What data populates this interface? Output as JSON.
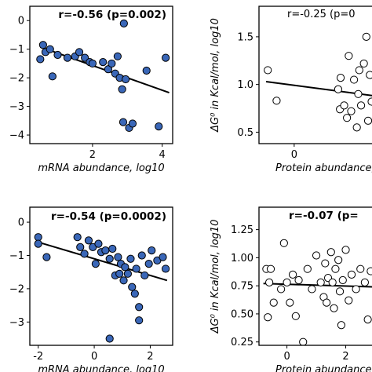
{
  "chart_data": [
    {
      "type": "scatter",
      "annotation": "r=-0.56 (p=0.002)",
      "annotation_bold": true,
      "xlabel": "mRNA abundance,  log10",
      "ylabel": "",
      "xlim": [
        0.2,
        4.3
      ],
      "ylim": [
        -4.3,
        0.5
      ],
      "xticks": [
        2,
        4
      ],
      "yticks": [
        0,
        -1,
        -2,
        -3,
        -4
      ],
      "marker_fill": "#3a67b8",
      "marker_edge": "#000000",
      "trend": {
        "x": [
          0.5,
          4.2
        ],
        "y": [
          -0.92,
          -2.52
        ]
      },
      "points": [
        {
          "x": 0.5,
          "y": -1.35
        },
        {
          "x": 0.58,
          "y": -0.85
        },
        {
          "x": 0.65,
          "y": -1.1
        },
        {
          "x": 0.78,
          "y": -1.0
        },
        {
          "x": 0.85,
          "y": -1.95
        },
        {
          "x": 1.0,
          "y": -1.2
        },
        {
          "x": 1.28,
          "y": -1.3
        },
        {
          "x": 1.5,
          "y": -1.25
        },
        {
          "x": 1.62,
          "y": -1.1
        },
        {
          "x": 1.78,
          "y": -1.3
        },
        {
          "x": 1.92,
          "y": -1.45
        },
        {
          "x": 2.0,
          "y": -1.5
        },
        {
          "x": 2.3,
          "y": -1.45
        },
        {
          "x": 2.45,
          "y": -1.7
        },
        {
          "x": 2.55,
          "y": -1.5
        },
        {
          "x": 2.65,
          "y": -1.85
        },
        {
          "x": 2.72,
          "y": -1.25
        },
        {
          "x": 2.78,
          "y": -2.0
        },
        {
          "x": 2.85,
          "y": -2.4
        },
        {
          "x": 2.88,
          "y": -3.55
        },
        {
          "x": 2.9,
          "y": -0.1
        },
        {
          "x": 2.95,
          "y": -2.05
        },
        {
          "x": 3.05,
          "y": -3.75
        },
        {
          "x": 3.15,
          "y": -3.6
        },
        {
          "x": 3.55,
          "y": -1.75
        },
        {
          "x": 3.9,
          "y": -3.7
        },
        {
          "x": 4.1,
          "y": -1.3
        }
      ]
    },
    {
      "type": "scatter",
      "annotation": "r=-0.25 (p=0",
      "annotation_bold": false,
      "xlabel": "Protein abundance,  M",
      "ylabel": "ΔG⁰ in Kcal/mol, log10",
      "xlim": [
        -1.0,
        2.3
      ],
      "ylim": [
        0.38,
        1.82
      ],
      "xticks": [
        0
      ],
      "yticks": [
        0.5,
        1.0,
        1.5
      ],
      "marker_fill": "#ffffff",
      "marker_edge": "#000000",
      "trend": {
        "x": [
          -0.8,
          2.3
        ],
        "y": [
          1.03,
          0.88
        ]
      },
      "points": [
        {
          "x": -0.75,
          "y": 1.15
        },
        {
          "x": -0.5,
          "y": 0.83
        },
        {
          "x": 0.8,
          "y": 0.25
        },
        {
          "x": 1.25,
          "y": 0.95
        },
        {
          "x": 1.3,
          "y": 0.74
        },
        {
          "x": 1.32,
          "y": 1.07
        },
        {
          "x": 1.42,
          "y": 0.78
        },
        {
          "x": 1.5,
          "y": 0.65
        },
        {
          "x": 1.55,
          "y": 1.3
        },
        {
          "x": 1.62,
          "y": 0.72
        },
        {
          "x": 1.7,
          "y": 1.05
        },
        {
          "x": 1.78,
          "y": 0.55
        },
        {
          "x": 1.82,
          "y": 0.9
        },
        {
          "x": 1.85,
          "y": 1.15
        },
        {
          "x": 1.9,
          "y": 0.78
        },
        {
          "x": 1.98,
          "y": 1.22
        },
        {
          "x": 2.05,
          "y": 1.5
        },
        {
          "x": 2.1,
          "y": 0.62
        },
        {
          "x": 2.15,
          "y": 1.1
        },
        {
          "x": 2.2,
          "y": 0.82
        }
      ]
    },
    {
      "type": "scatter",
      "annotation": "r=-0.54 (p=0.0002)",
      "annotation_bold": true,
      "xlabel": "mRNA abundance,  log10",
      "ylabel": "",
      "xlim": [
        -2.3,
        2.8
      ],
      "ylim": [
        -3.7,
        0.45
      ],
      "xticks": [
        -2,
        0,
        2
      ],
      "yticks": [
        0,
        -1,
        -2,
        -3
      ],
      "marker_fill": "#3a67b8",
      "marker_edge": "#000000",
      "trend": {
        "x": [
          -2.0,
          2.6
        ],
        "y": [
          -0.6,
          -1.75
        ]
      },
      "points": [
        {
          "x": -2.0,
          "y": -0.45
        },
        {
          "x": -2.0,
          "y": -0.65
        },
        {
          "x": -1.7,
          "y": -1.05
        },
        {
          "x": -0.6,
          "y": -0.45
        },
        {
          "x": -0.5,
          "y": -0.75
        },
        {
          "x": -0.35,
          "y": -0.95
        },
        {
          "x": -0.2,
          "y": -0.55
        },
        {
          "x": -0.05,
          "y": -0.75
        },
        {
          "x": 0.05,
          "y": -1.25
        },
        {
          "x": 0.15,
          "y": -0.65
        },
        {
          "x": 0.25,
          "y": -0.9
        },
        {
          "x": 0.4,
          "y": -0.85
        },
        {
          "x": 0.55,
          "y": -1.1
        },
        {
          "x": 0.65,
          "y": -0.8
        },
        {
          "x": 0.75,
          "y": -1.6
        },
        {
          "x": 0.85,
          "y": -1.05
        },
        {
          "x": 0.95,
          "y": -1.25
        },
        {
          "x": 1.05,
          "y": -1.75
        },
        {
          "x": 1.1,
          "y": -1.35
        },
        {
          "x": 1.2,
          "y": -1.55
        },
        {
          "x": 1.3,
          "y": -1.1
        },
        {
          "x": 1.35,
          "y": -1.95
        },
        {
          "x": 1.45,
          "y": -2.15
        },
        {
          "x": 1.5,
          "y": -1.4
        },
        {
          "x": 1.6,
          "y": -2.55
        },
        {
          "x": 1.7,
          "y": -1.0
        },
        {
          "x": 1.8,
          "y": -1.6
        },
        {
          "x": 1.95,
          "y": -1.25
        },
        {
          "x": 2.05,
          "y": -0.85
        },
        {
          "x": 2.25,
          "y": -1.15
        },
        {
          "x": 2.45,
          "y": -1.05
        },
        {
          "x": 2.55,
          "y": -1.4
        },
        {
          "x": 0.55,
          "y": -3.5
        },
        {
          "x": 1.6,
          "y": -2.95
        },
        {
          "x": 0.9,
          "y": -1.55
        }
      ]
    },
    {
      "type": "scatter",
      "annotation": "r=-0.07 (p=",
      "annotation_bold": true,
      "xlabel": "Protein abundance,  M",
      "ylabel": "ΔG⁰ in Kcal/mol, log10",
      "xlim": [
        -0.95,
        3.0
      ],
      "ylim": [
        0.22,
        1.45
      ],
      "xticks": [
        0,
        2
      ],
      "yticks": [
        0.25,
        0.5,
        0.75,
        1.0,
        1.25
      ],
      "marker_fill": "#ffffff",
      "marker_edge": "#000000",
      "trend": {
        "x": [
          -0.8,
          3.0
        ],
        "y": [
          0.77,
          0.74
        ]
      },
      "points": [
        {
          "x": -0.7,
          "y": 0.9
        },
        {
          "x": -0.6,
          "y": 0.78
        },
        {
          "x": -0.55,
          "y": 0.9
        },
        {
          "x": -0.45,
          "y": 0.6
        },
        {
          "x": -0.65,
          "y": 0.47
        },
        {
          "x": -0.2,
          "y": 0.72
        },
        {
          "x": -0.1,
          "y": 1.13
        },
        {
          "x": 0.0,
          "y": 0.78
        },
        {
          "x": 0.1,
          "y": 0.6
        },
        {
          "x": 0.2,
          "y": 0.85
        },
        {
          "x": 0.3,
          "y": 0.48
        },
        {
          "x": 0.4,
          "y": 0.8
        },
        {
          "x": 0.55,
          "y": 0.25
        },
        {
          "x": 0.7,
          "y": 0.9
        },
        {
          "x": 0.85,
          "y": 0.72
        },
        {
          "x": 1.0,
          "y": 1.02
        },
        {
          "x": 1.15,
          "y": 0.78
        },
        {
          "x": 1.25,
          "y": 0.65
        },
        {
          "x": 1.3,
          "y": 0.95
        },
        {
          "x": 1.35,
          "y": 0.6
        },
        {
          "x": 1.4,
          "y": 0.82
        },
        {
          "x": 1.5,
          "y": 1.05
        },
        {
          "x": 1.55,
          "y": 0.78
        },
        {
          "x": 1.6,
          "y": 0.55
        },
        {
          "x": 1.65,
          "y": 0.9
        },
        {
          "x": 1.75,
          "y": 0.98
        },
        {
          "x": 1.8,
          "y": 0.7
        },
        {
          "x": 1.85,
          "y": 0.4
        },
        {
          "x": 1.9,
          "y": 0.8
        },
        {
          "x": 2.0,
          "y": 1.07
        },
        {
          "x": 2.1,
          "y": 0.62
        },
        {
          "x": 2.2,
          "y": 0.85
        },
        {
          "x": 2.35,
          "y": 0.72
        },
        {
          "x": 2.5,
          "y": 0.9
        },
        {
          "x": 2.65,
          "y": 0.78
        },
        {
          "x": 2.75,
          "y": 0.45
        },
        {
          "x": 2.85,
          "y": 0.88
        }
      ]
    }
  ]
}
